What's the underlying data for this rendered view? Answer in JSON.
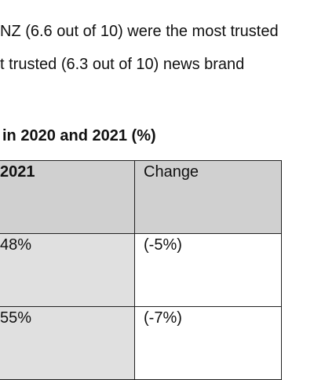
{
  "paragraph": {
    "lines": [
      "NZ (6.6 out of 10) were the most trusted",
      "t trusted (6.3 out of 10) news brand"
    ]
  },
  "table": {
    "title": "in 2020 and 2021 (%)",
    "header": [
      "2021",
      "Change"
    ],
    "rows": [
      [
        "48%",
        "(-5%)"
      ],
      [
        "55%",
        "(-7%)"
      ]
    ]
  }
}
